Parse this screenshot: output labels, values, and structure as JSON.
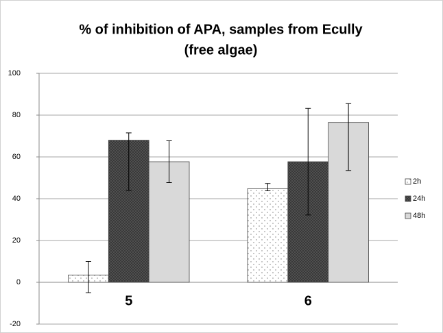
{
  "chart_data": {
    "type": "bar",
    "title": [
      "% of inhibition of APA, samples from Ecully",
      "(free algae)"
    ],
    "categories": [
      "5",
      "6"
    ],
    "series": [
      {
        "name": "2h",
        "color": "#ffffff",
        "pattern": "dots",
        "values": [
          3.5,
          44.8
        ],
        "err_minus": [
          8.5,
          1
        ],
        "err_plus": [
          6.5,
          2.5
        ]
      },
      {
        "name": "24h",
        "color": "#555555",
        "pattern": "crosshatch",
        "values": [
          68,
          57.7
        ],
        "err_minus": [
          24,
          25.5
        ],
        "err_plus": [
          3.5,
          25.5
        ]
      },
      {
        "name": "48h",
        "color": "#d9d9d9",
        "pattern": "solid",
        "values": [
          57.7,
          76.5
        ],
        "err_minus": [
          10,
          23
        ],
        "err_plus": [
          10,
          9
        ]
      }
    ],
    "ylim": [
      -20,
      100
    ],
    "yticks": [
      -20,
      0,
      20,
      40,
      60,
      80,
      100
    ],
    "grid": true,
    "legend": "right"
  }
}
